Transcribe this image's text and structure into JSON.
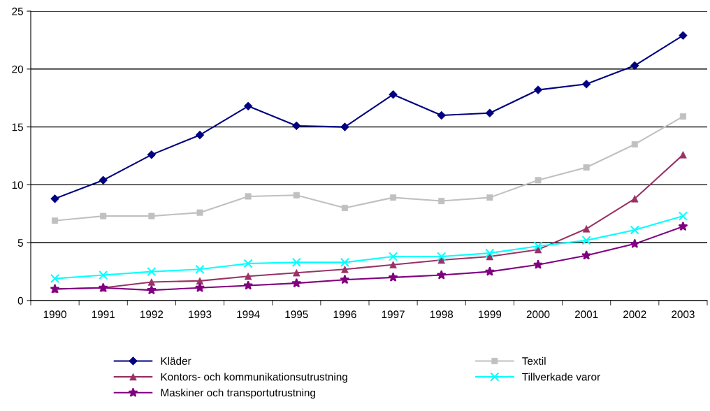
{
  "chart_data": {
    "type": "line",
    "categories": [
      "1990",
      "1991",
      "1992",
      "1993",
      "1994",
      "1995",
      "1996",
      "1997",
      "1998",
      "1999",
      "2000",
      "2001",
      "2002",
      "2003"
    ],
    "series": [
      {
        "name": "Kläder",
        "color": "#000080",
        "marker": "diamond",
        "values": [
          8.8,
          10.4,
          12.6,
          14.3,
          16.8,
          15.1,
          15.0,
          17.8,
          16.0,
          16.2,
          18.2,
          18.7,
          20.3,
          22.9
        ]
      },
      {
        "name": "Textil",
        "color": "#c0c0c0",
        "marker": "square",
        "values": [
          6.9,
          7.3,
          7.3,
          7.6,
          9.0,
          9.1,
          8.0,
          8.9,
          8.6,
          8.9,
          10.4,
          11.5,
          13.5,
          15.9
        ]
      },
      {
        "name": "Kontors- och kommunikationsutrustning",
        "color": "#993366",
        "marker": "triangle",
        "values": [
          1.0,
          1.1,
          1.6,
          1.7,
          2.1,
          2.4,
          2.7,
          3.1,
          3.5,
          3.8,
          4.4,
          6.2,
          8.8,
          12.6
        ]
      },
      {
        "name": "Tillverkade varor",
        "color": "#00ffff",
        "marker": "cross",
        "values": [
          1.9,
          2.2,
          2.5,
          2.7,
          3.2,
          3.3,
          3.3,
          3.8,
          3.8,
          4.1,
          4.7,
          5.2,
          6.1,
          7.3
        ]
      },
      {
        "name": "Maskiner och transportutrustning",
        "color": "#800080",
        "marker": "star",
        "values": [
          1.0,
          1.1,
          0.9,
          1.1,
          1.3,
          1.5,
          1.8,
          2.0,
          2.2,
          2.5,
          3.1,
          3.9,
          4.9,
          6.4
        ]
      }
    ],
    "ylim": [
      0,
      25
    ],
    "yticks": [
      0,
      5,
      10,
      15,
      20,
      25
    ],
    "grid": "y",
    "legend": "bottom"
  }
}
